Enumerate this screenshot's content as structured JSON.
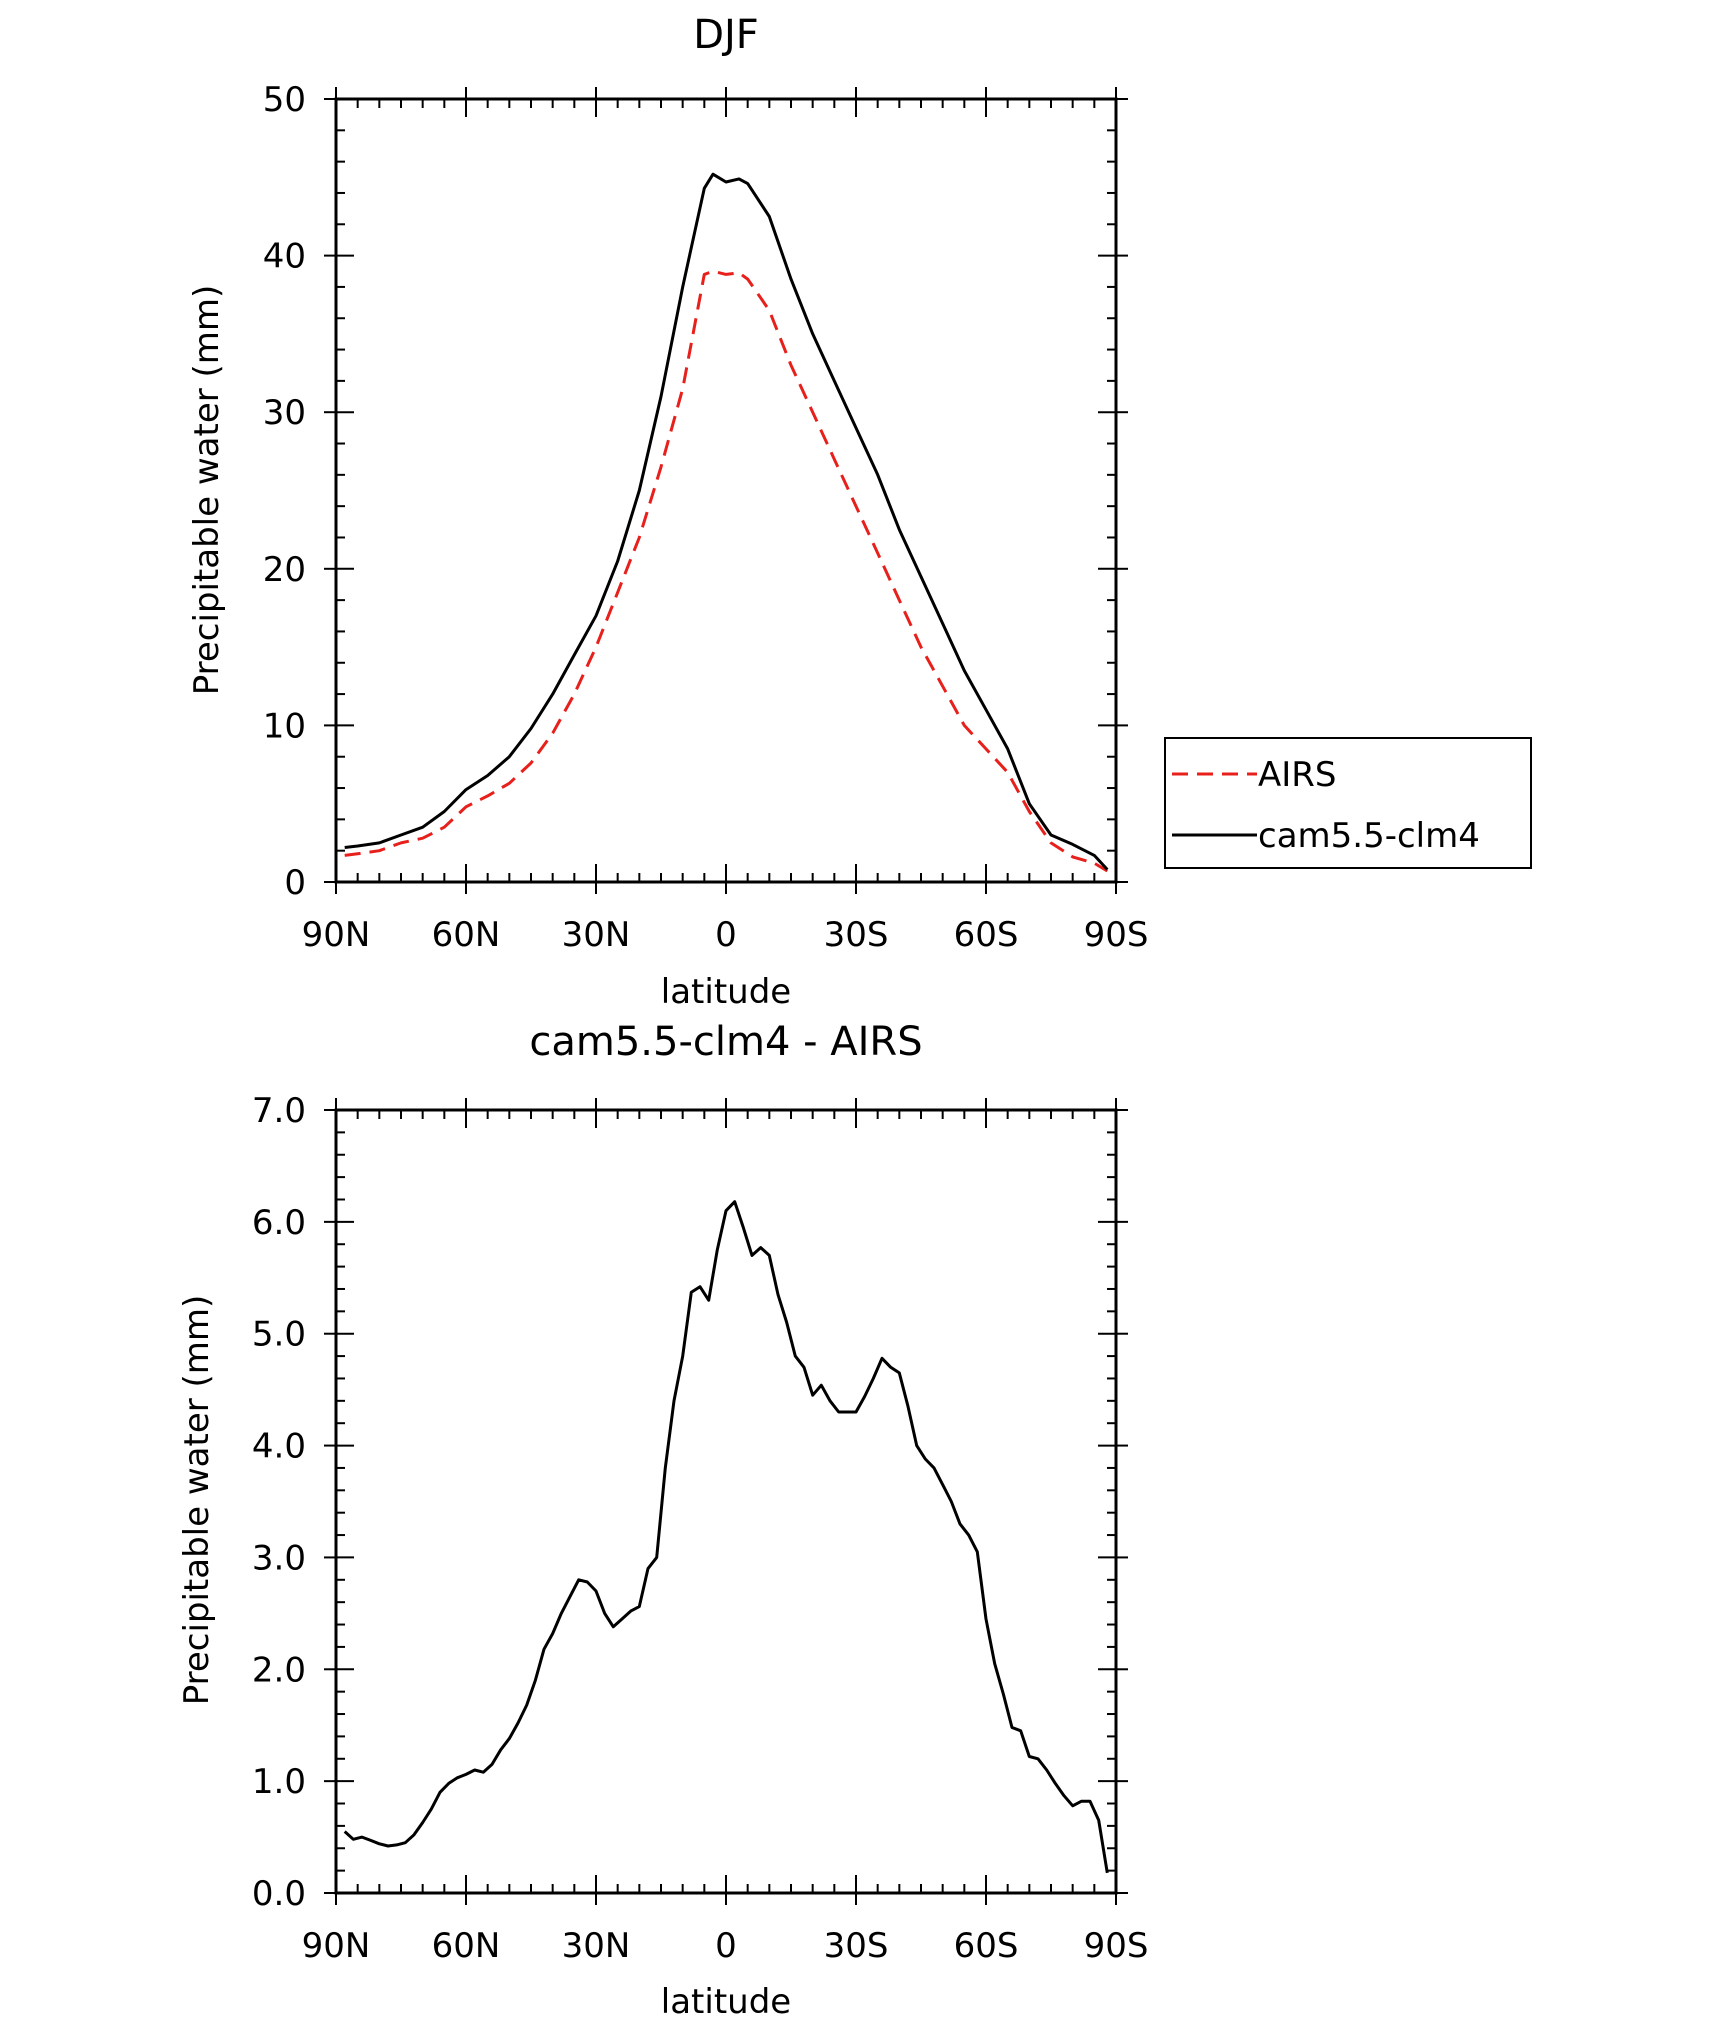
{
  "chart_data": [
    {
      "type": "line",
      "title": "DJF",
      "xlabel": "latitude",
      "ylabel": "Precipitable water (mm)",
      "xlim": [
        90,
        -90
      ],
      "ylim": [
        0,
        50
      ],
      "x_tick_values": [
        90,
        60,
        30,
        0,
        -30,
        -60,
        -90
      ],
      "x_tick_labels": [
        "90N",
        "60N",
        "30N",
        "0",
        "30S",
        "60S",
        "90S"
      ],
      "y_tick_values": [
        0,
        10,
        20,
        30,
        40,
        50
      ],
      "y_tick_labels": [
        "0",
        "10",
        "20",
        "30",
        "40",
        "50"
      ],
      "legend_position": "right",
      "series": [
        {
          "name": "AIRS",
          "color": "#e8201c",
          "style": "dashed",
          "x": [
            88,
            85,
            80,
            75,
            70,
            65,
            60,
            55,
            50,
            45,
            40,
            35,
            30,
            25,
            20,
            15,
            10,
            5,
            3,
            0,
            -3,
            -5,
            -10,
            -15,
            -20,
            -25,
            -30,
            -35,
            -40,
            -45,
            -50,
            -55,
            -60,
            -65,
            -70,
            -75,
            -80,
            -85,
            -88
          ],
          "y": [
            1.7,
            1.8,
            2.0,
            2.5,
            2.8,
            3.5,
            4.8,
            5.5,
            6.3,
            7.6,
            9.5,
            12.0,
            15.0,
            18.5,
            22.0,
            26.5,
            31.5,
            38.8,
            39.0,
            38.8,
            38.9,
            38.5,
            36.5,
            33.0,
            30.0,
            27.0,
            24.0,
            21.0,
            18.0,
            15.0,
            12.5,
            10.0,
            8.5,
            7.0,
            4.5,
            2.5,
            1.6,
            1.2,
            0.7
          ]
        },
        {
          "name": "cam5.5-clm4",
          "color": "#000000",
          "style": "solid",
          "x": [
            88,
            85,
            80,
            75,
            70,
            65,
            60,
            55,
            50,
            45,
            40,
            35,
            30,
            25,
            20,
            15,
            10,
            5,
            3,
            0,
            -3,
            -5,
            -10,
            -15,
            -20,
            -25,
            -30,
            -35,
            -40,
            -45,
            -50,
            -55,
            -60,
            -65,
            -70,
            -75,
            -80,
            -85,
            -88
          ],
          "y": [
            2.2,
            2.3,
            2.5,
            3.0,
            3.5,
            4.5,
            5.9,
            6.8,
            8.0,
            9.8,
            12.0,
            14.5,
            17.0,
            20.5,
            25.0,
            31.0,
            38.0,
            44.3,
            45.2,
            44.7,
            44.9,
            44.6,
            42.5,
            38.5,
            35.0,
            32.0,
            29.0,
            26.0,
            22.5,
            19.5,
            16.5,
            13.5,
            11.0,
            8.5,
            5.0,
            3.0,
            2.4,
            1.7,
            0.8
          ]
        }
      ]
    },
    {
      "type": "line",
      "title": "cam5.5-clm4 - AIRS",
      "xlabel": "latitude",
      "ylabel": "Precipitable water (mm)",
      "xlim": [
        90,
        -90
      ],
      "ylim": [
        0,
        7
      ],
      "x_tick_values": [
        90,
        60,
        30,
        0,
        -30,
        -60,
        -90
      ],
      "x_tick_labels": [
        "90N",
        "60N",
        "30N",
        "0",
        "30S",
        "60S",
        "90S"
      ],
      "y_tick_values": [
        0,
        1,
        2,
        3,
        4,
        5,
        6,
        7
      ],
      "y_tick_labels": [
        "0.0",
        "1.0",
        "2.0",
        "3.0",
        "4.0",
        "5.0",
        "6.0",
        "7.0"
      ],
      "series": [
        {
          "color": "#000000",
          "style": "solid",
          "x": [
            88,
            86,
            84,
            82,
            80,
            78,
            76,
            74,
            72,
            70,
            68,
            66,
            64,
            62,
            60,
            58,
            56,
            54,
            52,
            50,
            48,
            46,
            44,
            42,
            40,
            38,
            36,
            34,
            32,
            30,
            28,
            26,
            24,
            22,
            20,
            18,
            16,
            14,
            12,
            10,
            8,
            6,
            4,
            2,
            0,
            -2,
            -4,
            -6,
            -8,
            -10,
            -12,
            -14,
            -16,
            -18,
            -20,
            -22,
            -24,
            -26,
            -28,
            -30,
            -32,
            -34,
            -36,
            -38,
            -40,
            -42,
            -44,
            -46,
            -48,
            -50,
            -52,
            -54,
            -56,
            -58,
            -60,
            -62,
            -64,
            -66,
            -68,
            -70,
            -72,
            -74,
            -76,
            -78,
            -80,
            -82,
            -84,
            -86,
            -88
          ],
          "y": [
            0.55,
            0.48,
            0.5,
            0.47,
            0.44,
            0.42,
            0.43,
            0.45,
            0.52,
            0.63,
            0.75,
            0.9,
            0.98,
            1.03,
            1.06,
            1.1,
            1.08,
            1.15,
            1.28,
            1.38,
            1.52,
            1.68,
            1.9,
            2.18,
            2.32,
            2.5,
            2.65,
            2.8,
            2.78,
            2.7,
            2.5,
            2.38,
            2.45,
            2.52,
            2.56,
            2.9,
            3.0,
            3.8,
            4.4,
            4.8,
            5.37,
            5.42,
            5.3,
            5.75,
            6.1,
            6.18,
            5.95,
            5.7,
            5.77,
            5.7,
            5.35,
            5.1,
            4.8,
            4.7,
            4.45,
            4.54,
            4.4,
            4.3,
            4.3,
            4.3,
            4.44,
            4.6,
            4.78,
            4.7,
            4.65,
            4.35,
            4.0,
            3.88,
            3.8,
            3.65,
            3.5,
            3.3,
            3.2,
            3.05,
            2.45,
            2.05,
            1.78,
            1.48,
            1.45,
            1.22,
            1.2,
            1.1,
            0.98,
            0.87,
            0.78,
            0.82,
            0.82,
            0.65,
            0.18
          ]
        }
      ]
    }
  ]
}
